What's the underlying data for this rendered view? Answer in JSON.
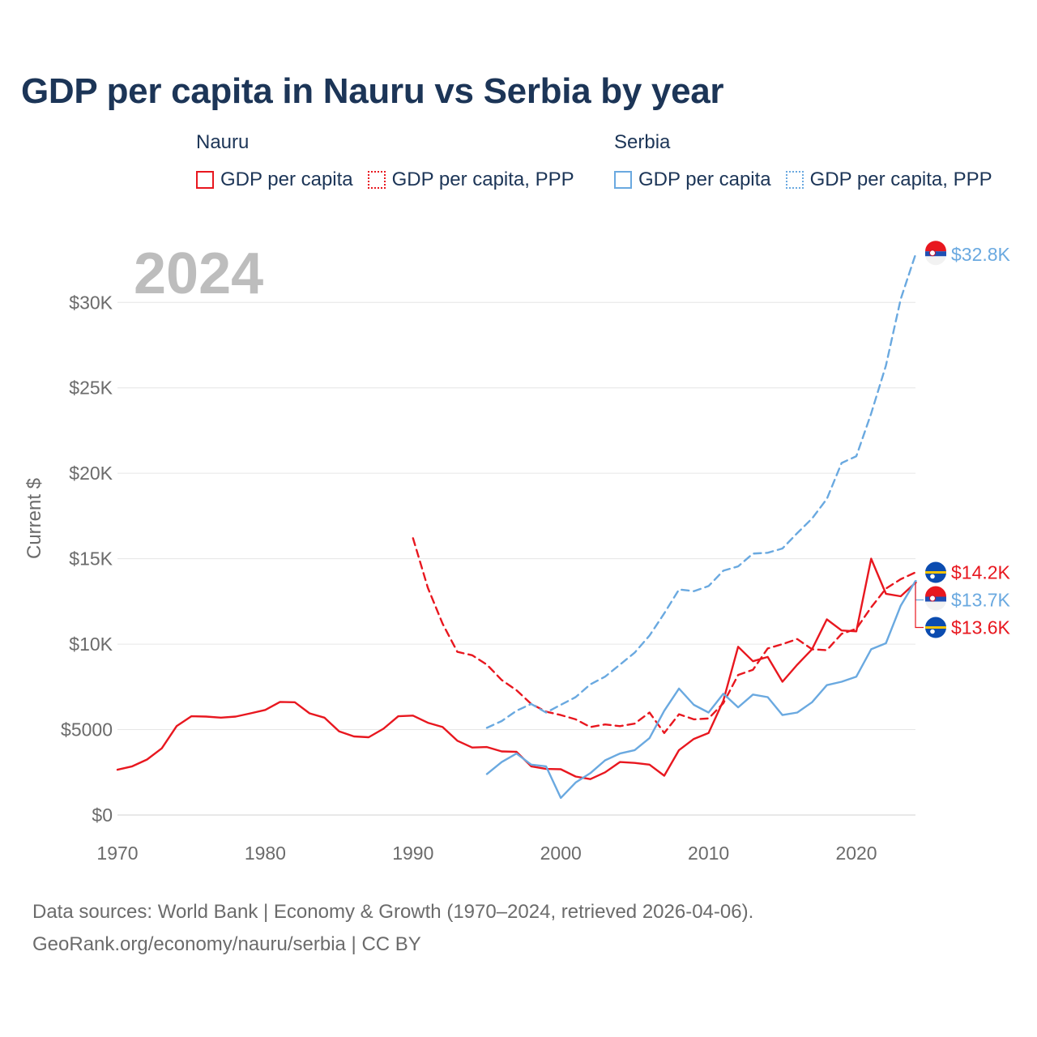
{
  "title": "GDP per capita in Nauru vs Serbia by year",
  "legend": {
    "groups": [
      {
        "name": "Nauru",
        "items": [
          {
            "label": "GDP per capita",
            "style": "solid",
            "color": "#e8171f"
          },
          {
            "label": "GDP per capita, PPP",
            "style": "dashed",
            "color": "#e8171f"
          }
        ]
      },
      {
        "name": "Serbia",
        "items": [
          {
            "label": "GDP per capita",
            "style": "solid",
            "color": "#6aa9e0"
          },
          {
            "label": "GDP per capita, PPP",
            "style": "dashed",
            "color": "#6aa9e0"
          }
        ]
      }
    ]
  },
  "footer": {
    "line1": "Data sources: World Bank | Economy & Growth (1970–2024, retrieved 2026-04-06).",
    "line2": "GeoRank.org/economy/nauru/serbia | CC BY"
  },
  "chart_data": {
    "type": "line",
    "title": "GDP per capita in Nauru vs Serbia by year",
    "year_label": "2024",
    "xlabel": "",
    "ylabel": "Current $",
    "xlim": [
      1970,
      2024
    ],
    "ylim": [
      0,
      33000
    ],
    "x_ticks": [
      1970,
      1980,
      1990,
      2000,
      2010,
      2020
    ],
    "x_tick_labels": [
      "1970",
      "1980",
      "1990",
      "2000",
      "2010",
      "2020"
    ],
    "y_ticks": [
      0,
      5000,
      10000,
      15000,
      20000,
      25000,
      30000
    ],
    "y_tick_labels": [
      "$0",
      "$5000",
      "$10K",
      "$15K",
      "$20K",
      "$25K",
      "$30K"
    ],
    "grid": true,
    "series": [
      {
        "name": "Nauru GDP per capita",
        "color": "#e8171f",
        "style": "solid",
        "end_label": "$13.6K",
        "x": [
          1970,
          1971,
          1972,
          1973,
          1974,
          1975,
          1976,
          1977,
          1978,
          1979,
          1980,
          1981,
          1982,
          1983,
          1984,
          1985,
          1986,
          1987,
          1988,
          1989,
          1990,
          1991,
          1992,
          1993,
          1994,
          1995,
          1996,
          1997,
          1998,
          1999,
          2000,
          2001,
          2002,
          2003,
          2004,
          2005,
          2006,
          2007,
          2008,
          2009,
          2010,
          2011,
          2012,
          2013,
          2014,
          2015,
          2016,
          2017,
          2018,
          2019,
          2020,
          2021,
          2022,
          2023,
          2024
        ],
        "values": [
          2650,
          2850,
          3250,
          3900,
          5200,
          5780,
          5760,
          5700,
          5760,
          5950,
          6150,
          6620,
          6600,
          5950,
          5700,
          4900,
          4600,
          4550,
          5050,
          5780,
          5820,
          5400,
          5150,
          4350,
          3950,
          3980,
          3720,
          3700,
          2850,
          2700,
          2680,
          2250,
          2100,
          2500,
          3100,
          3050,
          2950,
          2300,
          3800,
          4450,
          4800,
          6700,
          9850,
          9000,
          9250,
          7800,
          8800,
          9700,
          11450,
          10800,
          10750,
          15000,
          12950,
          12800,
          13600
        ]
      },
      {
        "name": "Nauru GDP per capita, PPP",
        "color": "#e8171f",
        "style": "dashed",
        "end_label": "$14.2K",
        "x": [
          1990,
          1991,
          1992,
          1993,
          1994,
          1995,
          1996,
          1997,
          1998,
          1999,
          2000,
          2001,
          2002,
          2003,
          2004,
          2005,
          2006,
          2007,
          2008,
          2009,
          2010,
          2011,
          2012,
          2013,
          2014,
          2015,
          2016,
          2017,
          2018,
          2019,
          2020,
          2021,
          2022,
          2023,
          2024
        ],
        "values": [
          16200,
          13300,
          11200,
          9550,
          9350,
          8800,
          7900,
          7300,
          6500,
          6050,
          5850,
          5600,
          5150,
          5300,
          5200,
          5350,
          6000,
          4800,
          5900,
          5600,
          5650,
          6550,
          8200,
          8500,
          9750,
          10000,
          10300,
          9700,
          9650,
          10600,
          10900,
          12150,
          13250,
          13800,
          14200
        ]
      },
      {
        "name": "Serbia GDP per capita",
        "color": "#6aa9e0",
        "style": "solid",
        "end_label": "$13.7K",
        "x": [
          1995,
          1996,
          1997,
          1998,
          1999,
          2000,
          2001,
          2002,
          2003,
          2004,
          2005,
          2006,
          2007,
          2008,
          2009,
          2010,
          2011,
          2012,
          2013,
          2014,
          2015,
          2016,
          2017,
          2018,
          2019,
          2020,
          2021,
          2022,
          2023,
          2024
        ],
        "values": [
          2400,
          3100,
          3600,
          2950,
          2850,
          1000,
          1900,
          2450,
          3200,
          3600,
          3800,
          4500,
          6100,
          7400,
          6450,
          6000,
          7100,
          6300,
          7050,
          6900,
          5850,
          6000,
          6600,
          7600,
          7800,
          8100,
          9700,
          10050,
          12250,
          13700
        ]
      },
      {
        "name": "Serbia GDP per capita, PPP",
        "color": "#6aa9e0",
        "style": "dashed",
        "end_label": "$32.8K",
        "x": [
          1995,
          1996,
          1997,
          1998,
          1999,
          2000,
          2001,
          2002,
          2003,
          2004,
          2005,
          2006,
          2007,
          2008,
          2009,
          2010,
          2011,
          2012,
          2013,
          2014,
          2015,
          2016,
          2017,
          2018,
          2019,
          2020,
          2021,
          2022,
          2023,
          2024
        ],
        "values": [
          5100,
          5500,
          6100,
          6500,
          6000,
          6450,
          6900,
          7650,
          8100,
          8800,
          9500,
          10500,
          11800,
          13200,
          13100,
          13400,
          14300,
          14550,
          15300,
          15350,
          15600,
          16500,
          17350,
          18500,
          20600,
          21000,
          23500,
          26300,
          30200,
          32800
        ]
      }
    ]
  }
}
